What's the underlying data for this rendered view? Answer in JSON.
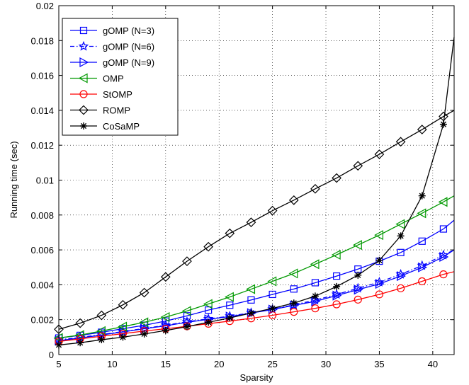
{
  "chart_data": {
    "type": "line",
    "title": "",
    "xlabel": "Sparsity",
    "ylabel": "Running time (sec)",
    "xlim": [
      5,
      42
    ],
    "ylim": [
      0,
      0.02
    ],
    "xticks": [
      5,
      10,
      15,
      20,
      25,
      30,
      35,
      40
    ],
    "xtick_labels": [
      "5",
      "10",
      "15",
      "20",
      "25",
      "30",
      "35",
      "40"
    ],
    "yticks": [
      0,
      0.002,
      0.004,
      0.006,
      0.008,
      0.01,
      0.012,
      0.014,
      0.016,
      0.018,
      0.02
    ],
    "ytick_labels": [
      "0",
      "0.002",
      "0.004",
      "0.006",
      "0.008",
      "0.01",
      "0.012",
      "0.014",
      "0.016",
      "0.018",
      "0.02"
    ],
    "grid": true,
    "legend_position": "top-left",
    "series": [
      {
        "name": "gOMP (N=3)",
        "color": "#0000ff",
        "dash": "solid",
        "marker": "square",
        "x": [
          5,
          7,
          9,
          11,
          13,
          15,
          17,
          19,
          21,
          23,
          25,
          27,
          29,
          31,
          33,
          35,
          37,
          39,
          41,
          42
        ],
        "y": [
          0.00095,
          0.0011,
          0.00128,
          0.00148,
          0.00168,
          0.00192,
          0.00222,
          0.00255,
          0.00283,
          0.00313,
          0.00345,
          0.00376,
          0.00412,
          0.0045,
          0.0049,
          0.00535,
          0.00585,
          0.0065,
          0.0072,
          0.0077
        ]
      },
      {
        "name": "gOMP (N=6)",
        "color": "#0000ff",
        "dash": "dashdot",
        "marker": "star",
        "x": [
          5,
          7,
          9,
          11,
          13,
          15,
          17,
          19,
          21,
          23,
          25,
          27,
          29,
          31,
          33,
          35,
          37,
          39,
          41,
          42
        ],
        "y": [
          0.00085,
          0.00098,
          0.00115,
          0.00132,
          0.0015,
          0.00168,
          0.00188,
          0.00205,
          0.0022,
          0.0024,
          0.0026,
          0.00285,
          0.00312,
          0.00345,
          0.0038,
          0.00415,
          0.0046,
          0.0051,
          0.0057,
          0.006
        ]
      },
      {
        "name": "gOMP (N=9)",
        "color": "#0000ff",
        "dash": "solid",
        "marker": "triangle-right",
        "x": [
          5,
          7,
          9,
          11,
          13,
          15,
          17,
          19,
          21,
          23,
          25,
          27,
          29,
          31,
          33,
          35,
          37,
          39,
          41,
          42
        ],
        "y": [
          0.0008,
          0.00095,
          0.00112,
          0.0013,
          0.00148,
          0.00165,
          0.00185,
          0.00202,
          0.00218,
          0.00238,
          0.00258,
          0.00282,
          0.00305,
          0.00338,
          0.00372,
          0.00405,
          0.0045,
          0.005,
          0.0056,
          0.006
        ]
      },
      {
        "name": "OMP",
        "color": "#009900",
        "dash": "solid",
        "marker": "triangle-left",
        "x": [
          5,
          7,
          9,
          11,
          13,
          15,
          17,
          19,
          21,
          23,
          25,
          27,
          29,
          31,
          33,
          35,
          37,
          39,
          41,
          42
        ],
        "y": [
          0.00095,
          0.00112,
          0.00135,
          0.0016,
          0.00185,
          0.00215,
          0.0025,
          0.0029,
          0.0033,
          0.00375,
          0.0042,
          0.00465,
          0.00518,
          0.00572,
          0.00628,
          0.00685,
          0.00748,
          0.0081,
          0.00875,
          0.0091
        ]
      },
      {
        "name": "StOMP",
        "color": "#ff0000",
        "dash": "solid",
        "marker": "circle",
        "x": [
          5,
          7,
          9,
          11,
          13,
          15,
          17,
          19,
          21,
          23,
          25,
          27,
          29,
          31,
          33,
          35,
          37,
          39,
          41,
          42
        ],
        "y": [
          0.00075,
          0.0009,
          0.00105,
          0.0012,
          0.00135,
          0.00148,
          0.00162,
          0.00177,
          0.00192,
          0.00208,
          0.00225,
          0.00245,
          0.00265,
          0.00288,
          0.00315,
          0.00345,
          0.0038,
          0.0042,
          0.0046,
          0.00475
        ]
      },
      {
        "name": "ROMP",
        "color": "#000000",
        "dash": "solid",
        "marker": "diamond",
        "x": [
          5,
          7,
          9,
          11,
          13,
          15,
          17,
          19,
          21,
          23,
          25,
          27,
          29,
          31,
          33,
          35,
          37,
          39,
          41,
          42
        ],
        "y": [
          0.00145,
          0.0018,
          0.00225,
          0.00285,
          0.00355,
          0.00445,
          0.00535,
          0.00618,
          0.00695,
          0.00758,
          0.00825,
          0.00885,
          0.0095,
          0.01012,
          0.01082,
          0.01148,
          0.0122,
          0.0129,
          0.01365,
          0.014
        ]
      },
      {
        "name": "CoSaMP",
        "color": "#000000",
        "dash": "solid",
        "marker": "asterisk",
        "x": [
          5,
          7,
          9,
          11,
          13,
          15,
          17,
          19,
          21,
          23,
          25,
          27,
          29,
          31,
          33,
          35,
          37,
          39,
          41,
          42
        ],
        "y": [
          0.00055,
          0.00068,
          0.00085,
          0.001,
          0.00118,
          0.00138,
          0.0016,
          0.00185,
          0.0021,
          0.00238,
          0.00265,
          0.00295,
          0.00335,
          0.0039,
          0.00455,
          0.0054,
          0.0068,
          0.0091,
          0.0132,
          0.0182
        ]
      }
    ]
  }
}
